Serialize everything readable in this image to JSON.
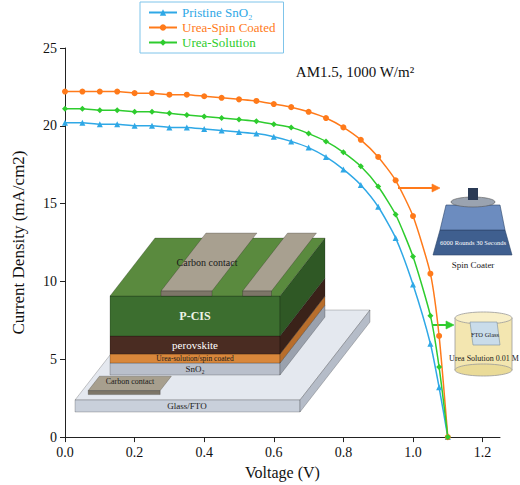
{
  "chart_data": {
    "type": "line",
    "x_label": "Voltage (V)",
    "y_label": "Current Density (mA/cm2)",
    "x": [
      0.0,
      0.05,
      0.1,
      0.15,
      0.2,
      0.25,
      0.3,
      0.35,
      0.4,
      0.45,
      0.5,
      0.55,
      0.6,
      0.65,
      0.7,
      0.75,
      0.8,
      0.85,
      0.9,
      0.95,
      1.0,
      1.05,
      1.075,
      1.1
    ],
    "series": [
      {
        "name": "Pristine SnO₂",
        "color": "#2fa8e6",
        "marker": "triangle",
        "values": [
          20.2,
          20.2,
          20.1,
          20.1,
          20.0,
          20.0,
          19.9,
          19.9,
          19.8,
          19.7,
          19.6,
          19.5,
          19.3,
          19.0,
          18.6,
          18.0,
          17.2,
          16.2,
          14.8,
          12.8,
          9.8,
          6.0,
          3.2,
          0.0
        ]
      },
      {
        "name": "Urea-Spin Coated",
        "color": "#ff7a1a",
        "marker": "circle",
        "values": [
          22.2,
          22.2,
          22.2,
          22.2,
          22.1,
          22.1,
          22.0,
          22.0,
          21.9,
          21.8,
          21.7,
          21.6,
          21.4,
          21.2,
          20.9,
          20.5,
          19.9,
          19.1,
          18.0,
          16.5,
          14.2,
          10.5,
          6.5,
          0.0
        ]
      },
      {
        "name": "Urea-Solution",
        "color": "#2ecc2e",
        "marker": "diamond",
        "values": [
          21.1,
          21.1,
          21.0,
          21.0,
          20.9,
          20.9,
          20.8,
          20.7,
          20.6,
          20.5,
          20.4,
          20.3,
          20.1,
          19.9,
          19.5,
          19.0,
          18.3,
          17.4,
          16.1,
          14.3,
          11.6,
          7.8,
          4.5,
          0.0
        ]
      }
    ],
    "xlim": [
      0,
      1.25
    ],
    "xticks": [
      {
        "value": 0,
        "label": "0.0"
      },
      0.2,
      0.4,
      0.6,
      0.8,
      {
        "value": 1,
        "label": "1.0"
      },
      1.2
    ],
    "ylim": [
      0,
      25
    ],
    "yticks": [
      0,
      5,
      10,
      15,
      20,
      25
    ],
    "grid": false,
    "legend": "top",
    "annotations": [
      "AM1.5, 1000 W/m²",
      "Carbon contact",
      "P-CIS",
      "perovskite",
      "Urea-solution/spin coated",
      "SnO₂",
      "Glass/FTO",
      "Carbon contact",
      "Spin Coater",
      "6000 Rounds 30 Seconds",
      "Urea Solution 0.01 M",
      "FTO Glass"
    ]
  }
}
